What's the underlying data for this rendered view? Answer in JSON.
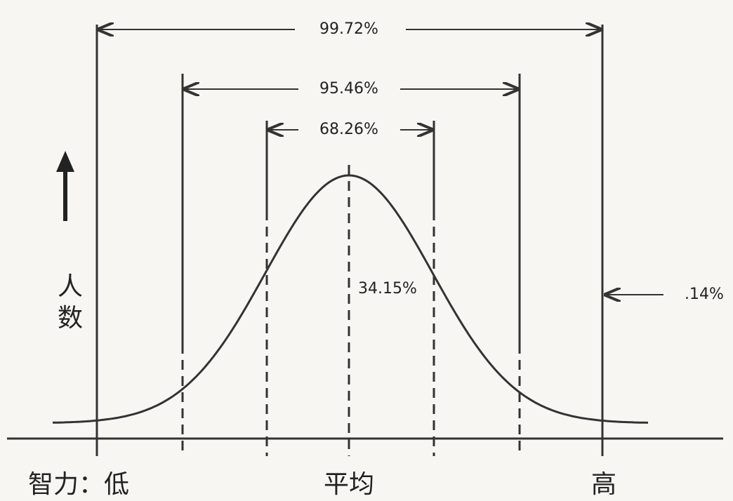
{
  "spans": [
    "99.72%",
    "95.46%",
    "68.26%"
  ],
  "center_label": "34.15%",
  "tail_label": ".14%",
  "y_axis": [
    "人",
    "数"
  ],
  "x_axis": {
    "low": "智力：低",
    "mean": "平均",
    "high": "高"
  }
}
